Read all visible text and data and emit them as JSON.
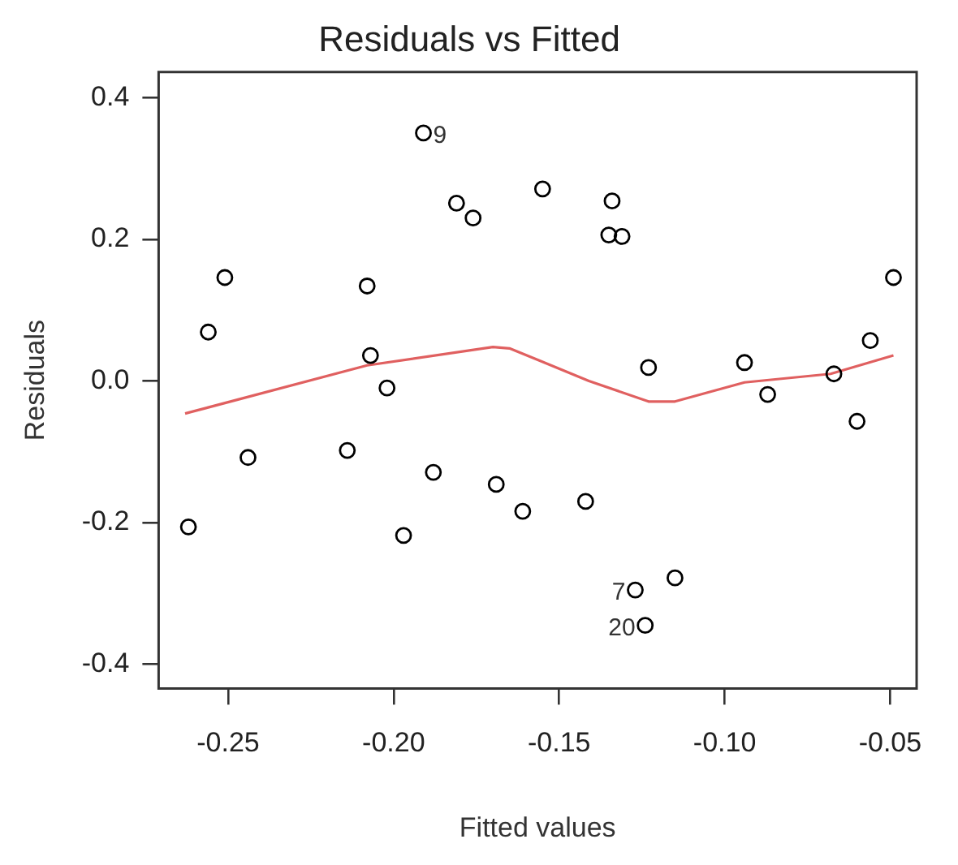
{
  "chart_data": {
    "type": "scatter",
    "title": "Residuals vs Fitted",
    "xlabel": "Fitted values",
    "ylabel": "Residuals",
    "xlim": [
      -0.271,
      -0.042
    ],
    "xticks": [
      -0.25,
      {
        "value": -0.2,
        "label": "-0.20"
      },
      -0.15,
      {
        "value": -0.1,
        "label": "-0.10"
      },
      -0.05
    ],
    "ylim": [
      -0.434,
      0.436
    ],
    "yticks": [
      -0.4,
      -0.2,
      {
        "value": 0,
        "label": "0.0"
      },
      0.2,
      0.4
    ],
    "grid": false,
    "marker": "circle",
    "series": [
      {
        "type": "scatter",
        "color": "#000000",
        "x": [
          -0.262,
          -0.256,
          -0.251,
          -0.244,
          -0.214,
          -0.208,
          -0.207,
          -0.202,
          -0.197,
          -0.191,
          -0.188,
          -0.181,
          -0.176,
          -0.169,
          -0.161,
          -0.155,
          -0.142,
          -0.134,
          -0.135,
          -0.131,
          -0.127,
          -0.123,
          -0.124,
          -0.115,
          -0.094,
          -0.087,
          -0.067,
          -0.06,
          -0.056,
          -0.049
        ],
        "values": [
          -0.206,
          0.069,
          0.146,
          -0.108,
          -0.098,
          0.134,
          0.036,
          -0.01,
          -0.218,
          0.35,
          -0.129,
          0.251,
          0.23,
          -0.146,
          -0.184,
          0.271,
          -0.17,
          0.254,
          0.206,
          0.204,
          -0.295,
          0.019,
          -0.345,
          -0.278,
          0.026,
          -0.019,
          0.01,
          -0.057,
          0.057,
          0.146
        ]
      },
      {
        "type": "line",
        "color": "#e06060",
        "marker": "none",
        "x": [
          -0.263,
          -0.208,
          -0.17,
          -0.165,
          -0.156,
          -0.141,
          -0.123,
          -0.115,
          -0.094,
          -0.068,
          -0.049
        ],
        "values": [
          -0.046,
          0.022,
          0.048,
          0.046,
          0.029,
          0,
          -0.029,
          -0.029,
          -0.002,
          0.01,
          0.036
        ]
      }
    ],
    "annotations": [
      {
        "text": "9",
        "x": -0.191,
        "y": 0.35
      },
      {
        "text": "7",
        "x": -0.127,
        "y": -0.295
      },
      {
        "text": "20",
        "x": -0.124,
        "y": -0.345
      }
    ]
  }
}
